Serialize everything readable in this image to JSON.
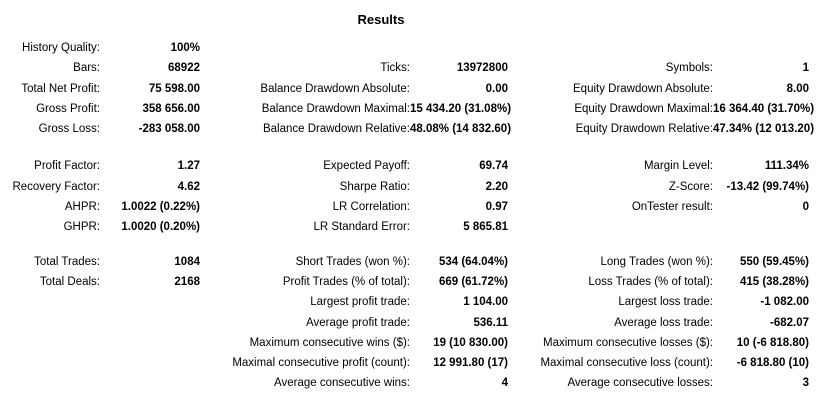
{
  "title": "Results",
  "rows": [
    {
      "l1": "History Quality:",
      "v1": "100%",
      "l2": "",
      "v2": "",
      "l3": "",
      "v3": ""
    },
    {
      "l1": "Bars:",
      "v1": "68922",
      "l2": "Ticks:",
      "v2": "13972800",
      "l3": "Symbols:",
      "v3": "1"
    },
    {
      "l1": "Total Net Profit:",
      "v1": "75 598.00",
      "l2": "Balance Drawdown Absolute:",
      "v2": "0.00",
      "l3": "Equity Drawdown Absolute:",
      "v3": "8.00"
    },
    {
      "l1": "Gross Profit:",
      "v1": "358 656.00",
      "l2": "Balance Drawdown Maximal:",
      "v2": "15 434.20 (31.08%)",
      "l3": "Equity Drawdown Maximal:",
      "v3": "16 364.40 (31.70%)"
    },
    {
      "l1": "Gross Loss:",
      "v1": "-283 058.00",
      "l2": "Balance Drawdown Relative:",
      "v2": "48.08% (14 832.60)",
      "l3": "Equity Drawdown Relative:",
      "v3": "47.34% (12 013.20)"
    },
    {
      "l1": "Profit Factor:",
      "v1": "1.27",
      "l2": "Expected Payoff:",
      "v2": "69.74",
      "l3": "Margin Level:",
      "v3": "111.34%"
    },
    {
      "l1": "Recovery Factor:",
      "v1": "4.62",
      "l2": "Sharpe Ratio:",
      "v2": "2.20",
      "l3": "Z-Score:",
      "v3": "-13.42 (99.74%)"
    },
    {
      "l1": "AHPR:",
      "v1": "1.0022 (0.22%)",
      "l2": "LR Correlation:",
      "v2": "0.97",
      "l3": "OnTester result:",
      "v3": "0"
    },
    {
      "l1": "GHPR:",
      "v1": "1.0020 (0.20%)",
      "l2": "LR Standard Error:",
      "v2": "5 865.81",
      "l3": "",
      "v3": ""
    },
    {
      "l1": "Total Trades:",
      "v1": "1084",
      "l2": "Short Trades (won %):",
      "v2": "534 (64.04%)",
      "l3": "Long Trades (won %):",
      "v3": "550 (59.45%)"
    },
    {
      "l1": "Total Deals:",
      "v1": "2168",
      "l2": "Profit Trades (% of total):",
      "v2": "669 (61.72%)",
      "l3": "Loss Trades (% of total):",
      "v3": "415 (38.28%)"
    },
    {
      "l1": "",
      "v1": "",
      "l2": "Largest profit trade:",
      "v2": "1 104.00",
      "l3": "Largest loss trade:",
      "v3": "-1 082.00"
    },
    {
      "l1": "",
      "v1": "",
      "l2": "Average profit trade:",
      "v2": "536.11",
      "l3": "Average loss trade:",
      "v3": "-682.07"
    },
    {
      "l1": "",
      "v1": "",
      "l2": "Maximum consecutive wins ($):",
      "v2": "19 (10 830.00)",
      "l3": "Maximum consecutive losses ($):",
      "v3": "10 (-6 818.80)"
    },
    {
      "l1": "",
      "v1": "",
      "l2": "Maximal consecutive profit (count):",
      "v2": "12 991.80 (17)",
      "l3": "Maximal consecutive loss (count):",
      "v3": "-6 818.80 (10)"
    },
    {
      "l1": "",
      "v1": "",
      "l2": "Average consecutive wins:",
      "v2": "4",
      "l3": "Average consecutive losses:",
      "v3": "3"
    }
  ]
}
